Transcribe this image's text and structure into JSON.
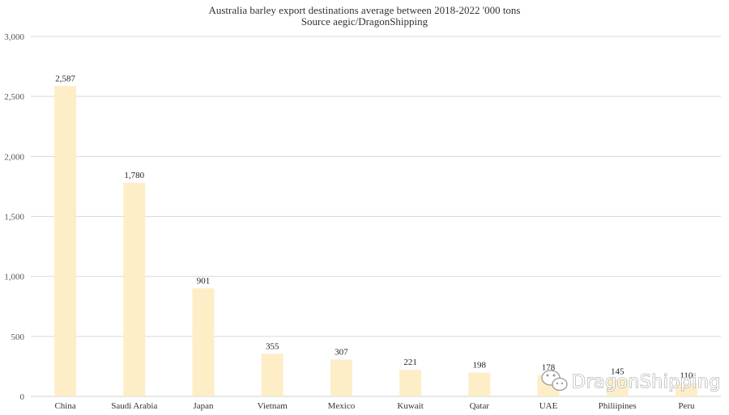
{
  "chart_data": {
    "type": "bar",
    "title": "Australia barley export destinations average between 2018-2022 '000 tons",
    "subtitle": "Source aegic/DragonShipping",
    "categories": [
      "China",
      "Saudi Arabia",
      "Japan",
      "Vietnam",
      "Mexico",
      "Kuwait",
      "Qatar",
      "UAE",
      "Philiipines",
      "Peru"
    ],
    "values": [
      2587,
      1780,
      901,
      355,
      307,
      221,
      198,
      178,
      145,
      110
    ],
    "data_labels": [
      "2,587",
      "1,780",
      "901",
      "355",
      "307",
      "221",
      "198",
      "178",
      "145",
      "110"
    ],
    "ylim": [
      0,
      3000
    ],
    "yticks": [
      0,
      500,
      1000,
      1500,
      2000,
      2500,
      3000
    ],
    "ytick_labels": [
      "0",
      "500",
      "1,000",
      "1,500",
      "2,000",
      "2,500",
      "3,000"
    ],
    "xlabel": "",
    "ylabel": "",
    "grid": true,
    "legend": "none",
    "bar_color": "#fdeec8"
  },
  "watermark": {
    "icon": "wechat-icon",
    "text": "DragonShipping"
  }
}
